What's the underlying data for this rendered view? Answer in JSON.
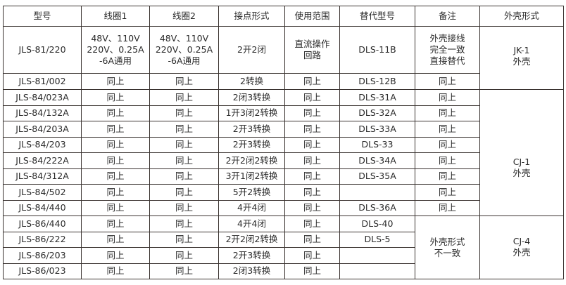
{
  "header": [
    "型号",
    "线圈1",
    "线圈2",
    "接点形式",
    "使用范围",
    "替代型号",
    "备注",
    "外壳形式"
  ],
  "rows": [
    {
      "model": "JLS-81/220",
      "coil1": "48V、110V\n220V、0.25A\n-6A通用",
      "coil2": "48V、110V\n220V、0.25A\n-6A通用",
      "contact": "2开2闭",
      "usage": "直流操作\n回路",
      "replacement": "DLS-11B",
      "remark": "外壳接线\n完全一致\n直接替代"
    },
    {
      "model": "JLS-81/002",
      "coil1": "同上",
      "coil2": "同上",
      "contact": "2转换",
      "usage": "同上",
      "replacement": "DLS-12B",
      "remark": "同上"
    },
    {
      "model": "JLS-84/023A",
      "coil1": "同上",
      "coil2": "同上",
      "contact": "2闭3转换",
      "usage": "同上",
      "replacement": "DLS-31A",
      "remark": "同上"
    },
    {
      "model": "JLS-84/132A",
      "coil1": "同上",
      "coil2": "同上",
      "contact": "1开3闭2转换",
      "usage": "同上",
      "replacement": "DLS-32A",
      "remark": "同上"
    },
    {
      "model": "JLS-84/203A",
      "coil1": "同上",
      "coil2": "同上",
      "contact": "2开3转换",
      "usage": "同上",
      "replacement": "DLS-33A",
      "remark": "同上"
    },
    {
      "model": "JLS-84/203",
      "coil1": "同上",
      "coil2": "同上",
      "contact": "2开3转换",
      "usage": "同上",
      "replacement": "DLS-33",
      "remark": "同上"
    },
    {
      "model": "JLS-84/222A",
      "coil1": "同上",
      "coil2": "同上",
      "contact": "2开2闭2转换",
      "usage": "同上",
      "replacement": "DLS-34A",
      "remark": "同上"
    },
    {
      "model": "JLS-84/312A",
      "coil1": "同上",
      "coil2": "同上",
      "contact": "3开1闭2转换",
      "usage": "同上",
      "replacement": "DLS-35A",
      "remark": "同上"
    },
    {
      "model": "JLS-84/502",
      "coil1": "同上",
      "coil2": "同上",
      "contact": "5开2转换",
      "usage": "同上",
      "replacement": "",
      "remark": "同上"
    },
    {
      "model": "JLS-84/440",
      "coil1": "同上",
      "coil2": "同上",
      "contact": "4开4闭",
      "usage": "同上",
      "replacement": "DLS-36A",
      "remark": "同上"
    },
    {
      "model": "JLS-86/440",
      "coil1": "同上",
      "coil2": "同上",
      "contact": "4开4闭",
      "usage": "同上",
      "replacement": "DLS-40"
    },
    {
      "model": "JLS-86/222",
      "coil1": "同上",
      "coil2": "同上",
      "contact": "2开2闭2转换",
      "usage": "同上",
      "replacement": "DLS-5"
    },
    {
      "model": "JLS-86/203",
      "coil1": "同上",
      "coil2": "同上",
      "contact": "2开3转换",
      "usage": "同上",
      "replacement": ""
    },
    {
      "model": "JLS-86/023",
      "coil1": "同上",
      "coil2": "同上",
      "contact": "2闭3转换",
      "usage": "同上",
      "replacement": ""
    }
  ],
  "merged_remark": {
    "start_row": 10,
    "span": 4,
    "text": "外壳形式\n不一致"
  },
  "shell_groups": [
    {
      "start_row": 0,
      "span": 2,
      "text": "JK-1\n外壳"
    },
    {
      "start_row": 2,
      "span": 8,
      "text": "CJ-1\n外壳"
    },
    {
      "start_row": 10,
      "span": 4,
      "text": "CJ-4\n外壳"
    }
  ]
}
